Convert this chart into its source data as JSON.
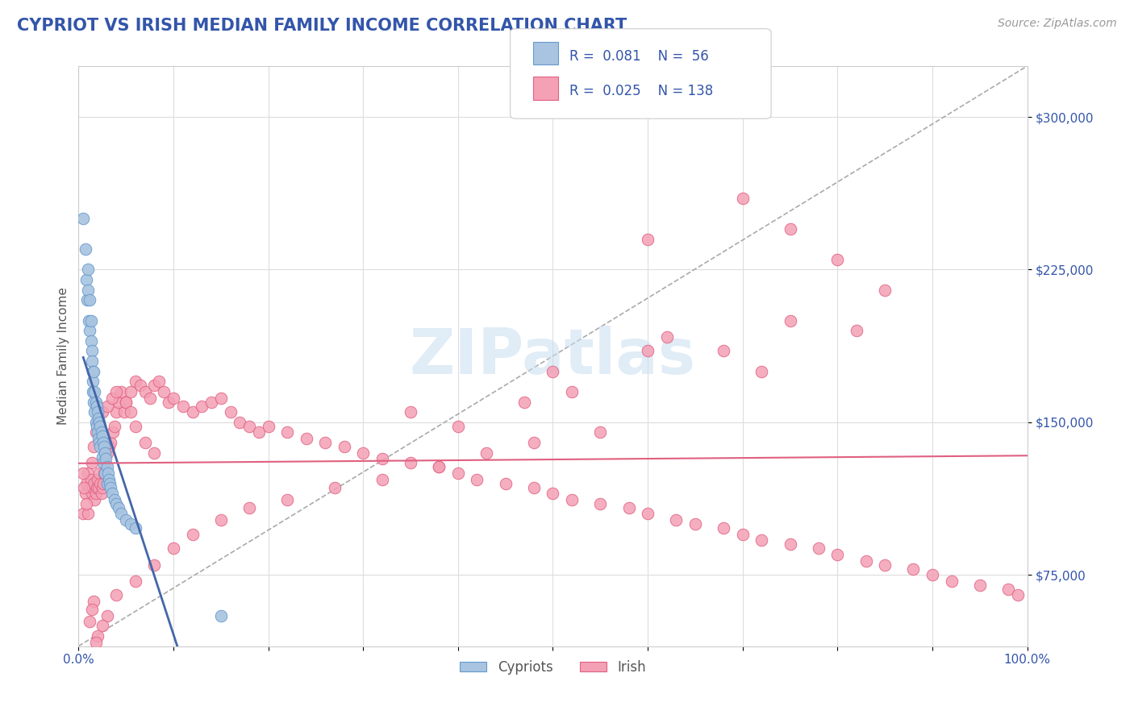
{
  "title": "CYPRIOT VS IRISH MEDIAN FAMILY INCOME CORRELATION CHART",
  "source_text": "Source: ZipAtlas.com",
  "ylabel": "Median Family Income",
  "xmin": 0.0,
  "xmax": 1.0,
  "ymin": 40000,
  "ymax": 325000,
  "yticks": [
    75000,
    150000,
    225000,
    300000
  ],
  "ytick_labels": [
    "$75,000",
    "$150,000",
    "$225,000",
    "$300,000"
  ],
  "xticks": [
    0.0,
    0.1,
    0.2,
    0.3,
    0.4,
    0.5,
    0.6,
    0.7,
    0.8,
    0.9,
    1.0
  ],
  "xtick_labels": [
    "0.0%",
    "",
    "",
    "",
    "",
    "",
    "",
    "",
    "",
    "",
    "100.0%"
  ],
  "cypriot_color": "#a8c4e0",
  "irish_color": "#f4a0b5",
  "cypriot_edge": "#6699cc",
  "irish_edge": "#e06080",
  "cypriot_line_color": "#4466aa",
  "irish_line_color": "#e06080",
  "ref_line_color": "#aaaaaa",
  "legend_R1": "0.081",
  "legend_N1": "56",
  "legend_R2": "0.025",
  "legend_N2": "138",
  "watermark": "ZIPatlas",
  "watermark_color": "#c8ddf0",
  "title_color": "#3355aa",
  "title_fontsize": 15,
  "axis_label_color": "#555555",
  "tick_color": "#3355aa",
  "grid_color": "#dddddd",
  "background_color": "#ffffff",
  "cypriot_x": [
    0.005,
    0.007,
    0.008,
    0.009,
    0.01,
    0.01,
    0.011,
    0.012,
    0.012,
    0.013,
    0.013,
    0.014,
    0.014,
    0.015,
    0.015,
    0.015,
    0.016,
    0.016,
    0.017,
    0.017,
    0.018,
    0.018,
    0.019,
    0.019,
    0.02,
    0.02,
    0.021,
    0.021,
    0.022,
    0.022,
    0.023,
    0.023,
    0.024,
    0.025,
    0.025,
    0.026,
    0.026,
    0.027,
    0.028,
    0.028,
    0.029,
    0.03,
    0.03,
    0.031,
    0.032,
    0.033,
    0.034,
    0.035,
    0.038,
    0.04,
    0.042,
    0.045,
    0.05,
    0.055,
    0.06,
    0.15
  ],
  "cypriot_y": [
    250000,
    235000,
    220000,
    210000,
    225000,
    215000,
    200000,
    210000,
    195000,
    190000,
    200000,
    185000,
    180000,
    175000,
    170000,
    165000,
    175000,
    160000,
    165000,
    155000,
    160000,
    150000,
    158000,
    148000,
    155000,
    145000,
    152000,
    142000,
    150000,
    140000,
    148000,
    138000,
    145000,
    143000,
    133000,
    140000,
    130000,
    138000,
    135000,
    125000,
    132000,
    128000,
    120000,
    125000,
    122000,
    120000,
    118000,
    115000,
    112000,
    110000,
    108000,
    105000,
    102000,
    100000,
    98000,
    55000
  ],
  "irish_x": [
    0.005,
    0.007,
    0.008,
    0.01,
    0.012,
    0.013,
    0.014,
    0.015,
    0.016,
    0.017,
    0.018,
    0.019,
    0.02,
    0.021,
    0.022,
    0.023,
    0.024,
    0.025,
    0.026,
    0.027,
    0.028,
    0.03,
    0.032,
    0.034,
    0.036,
    0.038,
    0.04,
    0.042,
    0.045,
    0.048,
    0.05,
    0.055,
    0.06,
    0.065,
    0.07,
    0.075,
    0.08,
    0.085,
    0.09,
    0.095,
    0.1,
    0.11,
    0.12,
    0.13,
    0.14,
    0.15,
    0.16,
    0.17,
    0.18,
    0.19,
    0.2,
    0.22,
    0.24,
    0.26,
    0.28,
    0.3,
    0.32,
    0.35,
    0.38,
    0.4,
    0.42,
    0.45,
    0.48,
    0.5,
    0.52,
    0.55,
    0.58,
    0.6,
    0.63,
    0.65,
    0.68,
    0.7,
    0.72,
    0.75,
    0.78,
    0.8,
    0.83,
    0.85,
    0.88,
    0.9,
    0.92,
    0.95,
    0.98,
    0.99,
    0.6,
    0.7,
    0.75,
    0.8,
    0.85,
    0.75,
    0.82,
    0.6,
    0.5,
    0.62,
    0.68,
    0.72,
    0.52,
    0.47,
    0.35,
    0.4,
    0.55,
    0.48,
    0.43,
    0.38,
    0.32,
    0.27,
    0.22,
    0.18,
    0.15,
    0.12,
    0.1,
    0.08,
    0.06,
    0.04,
    0.03,
    0.025,
    0.02,
    0.018,
    0.016,
    0.014,
    0.012,
    0.01,
    0.008,
    0.006,
    0.005,
    0.014,
    0.016,
    0.018,
    0.02,
    0.025,
    0.03,
    0.035,
    0.04,
    0.05,
    0.055,
    0.06,
    0.07,
    0.08
  ],
  "irish_y": [
    105000,
    115000,
    120000,
    125000,
    118000,
    122000,
    115000,
    118000,
    120000,
    112000,
    115000,
    118000,
    122000,
    118000,
    125000,
    120000,
    115000,
    118000,
    120000,
    125000,
    130000,
    135000,
    138000,
    140000,
    145000,
    148000,
    155000,
    160000,
    165000,
    155000,
    160000,
    165000,
    170000,
    168000,
    165000,
    162000,
    168000,
    170000,
    165000,
    160000,
    162000,
    158000,
    155000,
    158000,
    160000,
    162000,
    155000,
    150000,
    148000,
    145000,
    148000,
    145000,
    142000,
    140000,
    138000,
    135000,
    132000,
    130000,
    128000,
    125000,
    122000,
    120000,
    118000,
    115000,
    112000,
    110000,
    108000,
    105000,
    102000,
    100000,
    98000,
    95000,
    92000,
    90000,
    88000,
    85000,
    82000,
    80000,
    78000,
    75000,
    72000,
    70000,
    68000,
    65000,
    240000,
    260000,
    245000,
    230000,
    215000,
    200000,
    195000,
    185000,
    175000,
    192000,
    185000,
    175000,
    165000,
    160000,
    155000,
    148000,
    145000,
    140000,
    135000,
    128000,
    122000,
    118000,
    112000,
    108000,
    102000,
    95000,
    88000,
    80000,
    72000,
    65000,
    55000,
    50000,
    45000,
    42000,
    62000,
    58000,
    52000,
    105000,
    110000,
    118000,
    125000,
    130000,
    138000,
    145000,
    150000,
    155000,
    158000,
    162000,
    165000,
    160000,
    155000,
    148000,
    140000,
    135000
  ]
}
